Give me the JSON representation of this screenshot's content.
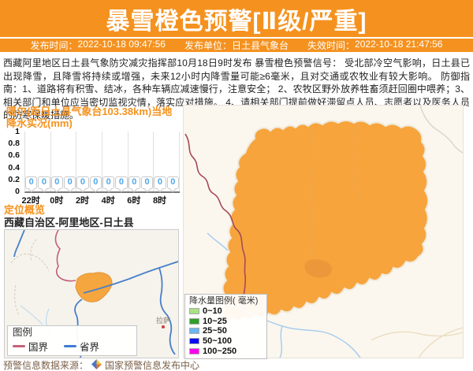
{
  "header": {
    "title": "暴雪橙色预警[Ⅱ级/严重]",
    "issue_time_label": "发布时间：",
    "issue_time": "2022-10-18 09:47:56",
    "issuer_label": "发布单位：",
    "issuer": "日土县气象台",
    "expire_label": "失效时间：",
    "expire_time": "2022-10-18 21:47:56"
  },
  "warning_text": "西藏阿里地区日土县气象防灾减灾指挥部10月18日9时发布 暴雪橙色预警信号： 受北部冷空气影响，日土县已出现降雪，且降雪将持续或增强，未来12小时内降雪量可能≥6毫米，且对交通或农牧业有较大影响。 防御指南：1、道路将有积雪、结冰，各种车辆应减速慢行，注意安全； 2、农牧区野外放养牲畜须赶回圈中喂养；3、相关部门和单位应当密切监视灾情，落实应对措施。 4、请相关部门提前做好滞留点人员、志愿者以及医务人员的防寒保暖措施。",
  "chart_data": {
    "type": "bar",
    "title": "噶尔(距日土县气象台103.38km)当地降水实况(mm)",
    "ylabel": "",
    "xlabel": "",
    "ylim": [
      0,
      1
    ],
    "yticks": [
      0,
      0.2,
      0.4,
      0.6,
      0.8,
      1
    ],
    "x_tick_labels": [
      "22时",
      "0时",
      "2时",
      "4时",
      "6时",
      "8时"
    ],
    "values": [
      0,
      0,
      0,
      0,
      0,
      0,
      0,
      0,
      0,
      0,
      0,
      0
    ],
    "grid": "vertical",
    "value_style": "callout-bubbles"
  },
  "location": {
    "heading": "定位概览",
    "path": "西藏自治区-阿里地区-日土县"
  },
  "map_small": {
    "city_label": "拉萨",
    "legend_title": "图例",
    "legend": [
      {
        "label": "国界",
        "color": "#c4607a"
      },
      {
        "label": "省界",
        "color": "#3f7cd0"
      }
    ]
  },
  "map_main": {
    "legend_title": "降水量图例( 毫米)",
    "legend": [
      {
        "label": "0~10",
        "color": "#a9e184"
      },
      {
        "label": "10~25",
        "color": "#2f9e2a"
      },
      {
        "label": "25~50",
        "color": "#6cb6ef"
      },
      {
        "label": "50~100",
        "color": "#0b0bf0"
      },
      {
        "label": "100~250",
        "color": "#ff00f0"
      }
    ],
    "county_fill": "#f7a43d"
  },
  "footer": {
    "source_label": "预警信息数据来源：",
    "source_name": "国家预警信息发布中心"
  },
  "colors": {
    "accent_orange": "#f5921f",
    "national_border": "#a64a58",
    "province_border": "#4a7fc9",
    "river": "#a8cdec"
  }
}
